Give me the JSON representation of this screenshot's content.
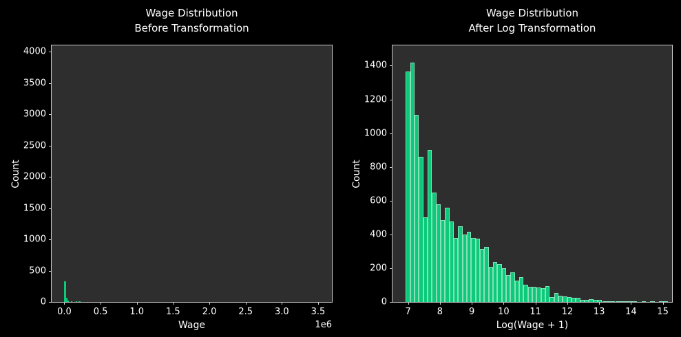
{
  "figure": {
    "background": "#000000",
    "axes_background": "#2e2e2e",
    "spine_color": "#cfcfcf",
    "text_color": "#ffffff",
    "bar_color": "#0dc97a",
    "bar_edge_color": "rgba(235,245,240,0.55)"
  },
  "chart_data": [
    {
      "type": "bar",
      "subtype": "histogram",
      "title_lines": [
        "Wage Distribution",
        "Before Transformation"
      ],
      "xlabel": "Wage",
      "ylabel": "Count",
      "x_offset_text": "1e6",
      "x_units": "millions (1e6)",
      "grid": false,
      "legend": null,
      "xlim": [
        -0.175,
        3.69
      ],
      "ylim": [
        0,
        4100
      ],
      "xticks": [
        0,
        0.5,
        1.0,
        1.5,
        2.0,
        2.5,
        3.0,
        3.5
      ],
      "xtick_labels": [
        "0.0",
        "0.5",
        "1.0",
        "1.5",
        "2.0",
        "2.5",
        "3.0",
        "3.5"
      ],
      "yticks": [
        0,
        500,
        1000,
        1500,
        2000,
        2500,
        3000,
        3500,
        4000
      ],
      "ytick_labels": [
        "0",
        "500",
        "1000",
        "1500",
        "2000",
        "2500",
        "3000",
        "3500",
        "4000"
      ],
      "bars": [
        {
          "x": 0.0,
          "w": 0.022,
          "count": 325
        },
        {
          "x": 0.022,
          "w": 0.022,
          "count": 70
        },
        {
          "x": 0.044,
          "w": 0.022,
          "count": 18
        },
        {
          "x": 0.088,
          "w": 0.022,
          "count": 10
        },
        {
          "x": 0.154,
          "w": 0.022,
          "count": 6
        },
        {
          "x": 0.2,
          "w": 0.022,
          "count": 6
        }
      ]
    },
    {
      "type": "bar",
      "subtype": "histogram",
      "title_lines": [
        "Wage Distribution",
        "After Log Transformation"
      ],
      "xlabel": "Log(Wage + 1)",
      "ylabel": "Count",
      "x_offset_text": "",
      "grid": false,
      "legend": null,
      "xlim": [
        6.51,
        15.29
      ],
      "ylim": [
        0,
        1520
      ],
      "xticks": [
        7,
        8,
        9,
        10,
        11,
        12,
        13,
        14,
        15
      ],
      "xtick_labels": [
        "7",
        "8",
        "9",
        "10",
        "11",
        "12",
        "13",
        "14",
        "15"
      ],
      "yticks": [
        0,
        200,
        400,
        600,
        800,
        1000,
        1200,
        1400
      ],
      "ytick_labels": [
        "0",
        "200",
        "400",
        "600",
        "800",
        "1000",
        "1200",
        "1400"
      ],
      "bin_start": 6.93,
      "bin_width": 0.137,
      "counts": [
        1365,
        1420,
        1110,
        860,
        500,
        900,
        650,
        580,
        485,
        560,
        478,
        380,
        450,
        400,
        415,
        378,
        375,
        315,
        325,
        208,
        235,
        225,
        200,
        160,
        175,
        125,
        145,
        100,
        90,
        88,
        85,
        80,
        92,
        30,
        52,
        38,
        33,
        30,
        25,
        25,
        14,
        11,
        16,
        11,
        11,
        6,
        5,
        4,
        3,
        2,
        2,
        1,
        1,
        0,
        1,
        0,
        1,
        0,
        5,
        3
      ]
    }
  ]
}
